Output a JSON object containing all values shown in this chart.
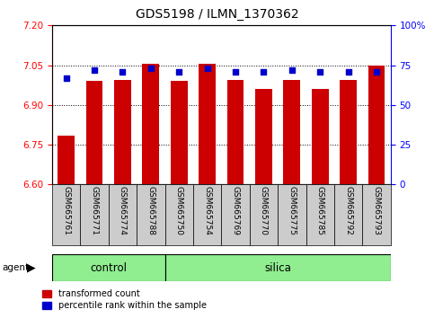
{
  "title": "GDS5198 / ILMN_1370362",
  "samples": [
    "GSM665761",
    "GSM665771",
    "GSM665774",
    "GSM665788",
    "GSM665750",
    "GSM665754",
    "GSM665769",
    "GSM665770",
    "GSM665775",
    "GSM665785",
    "GSM665792",
    "GSM665793"
  ],
  "groups": [
    "control",
    "control",
    "control",
    "control",
    "silica",
    "silica",
    "silica",
    "silica",
    "silica",
    "silica",
    "silica",
    "silica"
  ],
  "transformed_count": [
    6.785,
    6.99,
    6.995,
    7.055,
    6.99,
    7.055,
    6.995,
    6.96,
    6.995,
    6.96,
    6.995,
    7.05
  ],
  "percentile_rank": [
    67,
    72,
    71,
    73,
    71,
    73,
    71,
    71,
    72,
    71,
    71,
    71
  ],
  "ylim_left": [
    6.6,
    7.2
  ],
  "ylim_right": [
    0,
    100
  ],
  "yticks_left": [
    6.6,
    6.75,
    6.9,
    7.05,
    7.2
  ],
  "yticks_right": [
    0,
    25,
    50,
    75,
    100
  ],
  "bar_color": "#cc0000",
  "dot_color": "#0000cc",
  "group_color": "#90ee90",
  "bar_width": 0.6,
  "baseline": 6.6,
  "n_control": 4,
  "n_silica": 8
}
